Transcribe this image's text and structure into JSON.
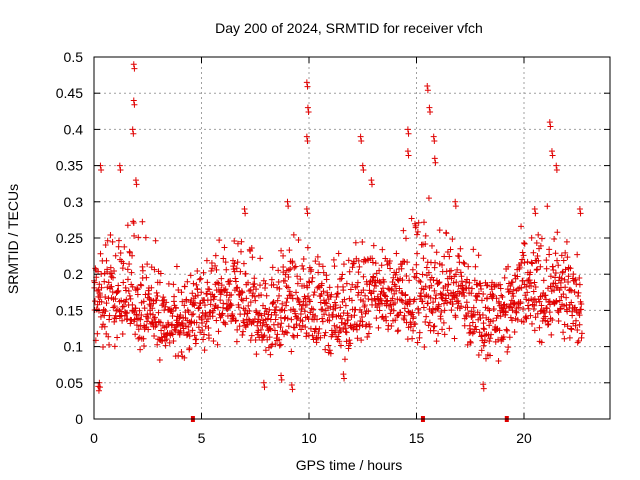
{
  "chart_data": {
    "type": "scatter",
    "title": "Day 200 of 2024, SRMTID for receiver vfch",
    "xlabel": "GPS time / hours",
    "ylabel": "SRMTID / TECUs",
    "xlim": [
      0,
      24
    ],
    "ylim": [
      0,
      0.5
    ],
    "xticks": [
      0,
      5,
      10,
      15,
      20
    ],
    "xtick_labels": [
      "0",
      "5",
      "10",
      "15",
      "20"
    ],
    "yticks": [
      0,
      0.05,
      0.1,
      0.15,
      0.2,
      0.25,
      0.3,
      0.35,
      0.4,
      0.45,
      0.5
    ],
    "ytick_labels": [
      "0",
      "0.05",
      "0.1",
      "0.15",
      "0.2",
      "0.25",
      "0.3",
      "0.35",
      "0.4",
      "0.45",
      "0.5"
    ],
    "grid": true,
    "marker": "+",
    "series_color": "#e00000",
    "data_range_hours": [
      0,
      22.7
    ],
    "data_gap_markers_x": [
      4.6,
      15.3,
      19.2
    ],
    "series": [
      {
        "name": "SRMTID",
        "envelope_hours": [
          0,
          1,
          2,
          3,
          4,
          5,
          6,
          7,
          8,
          9,
          10,
          11,
          12,
          13,
          14,
          15,
          16,
          17,
          18,
          19,
          20,
          21,
          22,
          22.7
        ],
        "median": [
          0.16,
          0.17,
          0.16,
          0.14,
          0.13,
          0.15,
          0.17,
          0.15,
          0.14,
          0.16,
          0.16,
          0.15,
          0.14,
          0.18,
          0.17,
          0.16,
          0.17,
          0.18,
          0.15,
          0.15,
          0.17,
          0.17,
          0.17,
          0.15
        ],
        "upper": [
          0.26,
          0.3,
          0.34,
          0.25,
          0.22,
          0.26,
          0.26,
          0.28,
          0.24,
          0.27,
          0.26,
          0.22,
          0.34,
          0.28,
          0.26,
          0.36,
          0.28,
          0.28,
          0.24,
          0.22,
          0.28,
          0.32,
          0.26,
          0.24
        ],
        "lower": [
          0.07,
          0.08,
          0.08,
          0.07,
          0.07,
          0.08,
          0.09,
          0.07,
          0.06,
          0.07,
          0.08,
          0.07,
          0.07,
          0.09,
          0.08,
          0.08,
          0.09,
          0.09,
          0.06,
          0.06,
          0.08,
          0.09,
          0.09,
          0.08
        ],
        "peaks": [
          {
            "x": 0.25,
            "y": 0.05
          },
          {
            "x": 0.2,
            "y": 0.045
          },
          {
            "x": 0.3,
            "y": 0.35
          },
          {
            "x": 1.2,
            "y": 0.35
          },
          {
            "x": 1.85,
            "y": 0.49
          },
          {
            "x": 1.85,
            "y": 0.44
          },
          {
            "x": 1.8,
            "y": 0.4
          },
          {
            "x": 1.95,
            "y": 0.33
          },
          {
            "x": 7.0,
            "y": 0.29
          },
          {
            "x": 9.0,
            "y": 0.3
          },
          {
            "x": 9.9,
            "y": 0.465
          },
          {
            "x": 9.95,
            "y": 0.43
          },
          {
            "x": 9.9,
            "y": 0.39
          },
          {
            "x": 9.9,
            "y": 0.29
          },
          {
            "x": 9.2,
            "y": 0.047
          },
          {
            "x": 12.4,
            "y": 0.39
          },
          {
            "x": 12.5,
            "y": 0.35
          },
          {
            "x": 14.6,
            "y": 0.4
          },
          {
            "x": 14.6,
            "y": 0.37
          },
          {
            "x": 15.5,
            "y": 0.46
          },
          {
            "x": 15.6,
            "y": 0.43
          },
          {
            "x": 15.8,
            "y": 0.39
          },
          {
            "x": 15.85,
            "y": 0.36
          },
          {
            "x": 18.1,
            "y": 0.048
          },
          {
            "x": 21.2,
            "y": 0.41
          },
          {
            "x": 21.3,
            "y": 0.37
          },
          {
            "x": 21.5,
            "y": 0.35
          },
          {
            "x": 22.6,
            "y": 0.29
          },
          {
            "x": 20.5,
            "y": 0.29
          },
          {
            "x": 16.8,
            "y": 0.3
          },
          {
            "x": 8.7,
            "y": 0.06
          },
          {
            "x": 7.9,
            "y": 0.05
          },
          {
            "x": 11.6,
            "y": 0.062
          },
          {
            "x": 12.9,
            "y": 0.33
          }
        ]
      }
    ]
  }
}
